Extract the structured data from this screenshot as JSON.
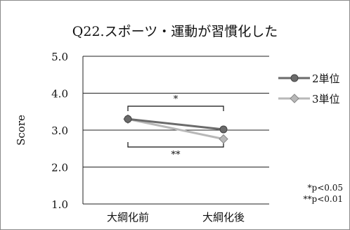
{
  "chart_data": {
    "type": "line",
    "title": "Q22.スポーツ・運動が習慣化した",
    "xlabel": "",
    "ylabel": "Score",
    "categories": [
      "大綱化前",
      "大綱化後"
    ],
    "ylim": [
      1.0,
      5.0
    ],
    "yticks": [
      "1.0",
      "2.0",
      "3.0",
      "4.0",
      "5.0"
    ],
    "grid": true,
    "legend": "right",
    "series": [
      {
        "name": "2単位",
        "values": [
          3.3,
          3.02
        ],
        "color": "#6b6b6b",
        "marker": "circle"
      },
      {
        "name": "3単位",
        "values": [
          3.3,
          2.76
        ],
        "color": "#b8b8b8",
        "marker": "diamond"
      }
    ],
    "annotations": [
      {
        "text": "*",
        "position": "above"
      },
      {
        "text": "**",
        "position": "below"
      }
    ],
    "notes": [
      "*p<0.05",
      "**p<0.01"
    ]
  }
}
